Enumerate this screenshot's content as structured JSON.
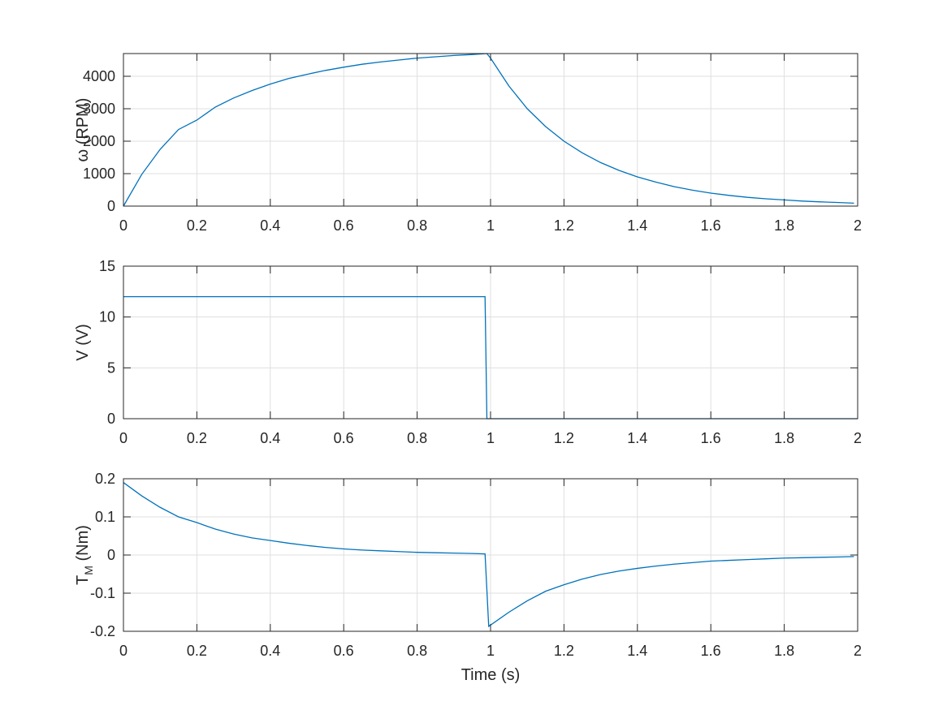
{
  "colors": {
    "series": "#0072bd",
    "axis": "#262626",
    "grid": "#dfdfdf"
  },
  "chart_data": [
    {
      "type": "line",
      "key": "omega",
      "ylabel": "ω (RPM)",
      "xlim": [
        0,
        2
      ],
      "ylim": [
        0,
        4700
      ],
      "xticks": [
        0,
        0.2,
        0.4,
        0.6,
        0.8,
        1,
        1.2,
        1.4,
        1.6,
        1.8,
        2
      ],
      "yticks": [
        0,
        1000,
        2000,
        3000,
        4000
      ],
      "grid": true,
      "series": [
        {
          "x": [
            0,
            0.05,
            0.1,
            0.15,
            0.2,
            0.25,
            0.3,
            0.35,
            0.4,
            0.45,
            0.5,
            0.55,
            0.6,
            0.65,
            0.7,
            0.75,
            0.8,
            0.85,
            0.9,
            0.95,
            0.99,
            1.0,
            1.05,
            1.1,
            1.15,
            1.2,
            1.25,
            1.3,
            1.35,
            1.4,
            1.45,
            1.5,
            1.55,
            1.6,
            1.65,
            1.7,
            1.75,
            1.8,
            1.85,
            1.9,
            1.95,
            1.99
          ],
          "y": [
            0,
            980,
            1750,
            2360,
            2650,
            3050,
            3330,
            3560,
            3760,
            3930,
            4060,
            4180,
            4280,
            4370,
            4440,
            4500,
            4560,
            4600,
            4640,
            4670,
            4700,
            4560,
            3700,
            3000,
            2450,
            2000,
            1640,
            1340,
            1100,
            900,
            740,
            600,
            490,
            400,
            330,
            270,
            225,
            190,
            155,
            130,
            110,
            90
          ]
        }
      ]
    },
    {
      "type": "line",
      "key": "voltage",
      "ylabel": "V (V)",
      "xlim": [
        0,
        2
      ],
      "ylim": [
        0,
        15
      ],
      "xticks": [
        0,
        0.2,
        0.4,
        0.6,
        0.8,
        1,
        1.2,
        1.4,
        1.6,
        1.8,
        2
      ],
      "yticks": [
        0,
        5,
        10,
        15
      ],
      "grid": true,
      "series": [
        {
          "x": [
            0,
            0.985,
            0.99,
            2
          ],
          "y": [
            12,
            12,
            0,
            0
          ]
        }
      ]
    },
    {
      "type": "line",
      "key": "torque",
      "ylabel": "T",
      "ylabel_sub": "M",
      "ylabel_unit": " (Nm)",
      "xlabel": "Time (s)",
      "xlim": [
        0,
        2
      ],
      "ylim": [
        -0.2,
        0.2
      ],
      "xticks": [
        0,
        0.2,
        0.4,
        0.6,
        0.8,
        1,
        1.2,
        1.4,
        1.6,
        1.8,
        2
      ],
      "yticks": [
        -0.2,
        -0.1,
        0,
        0.1,
        0.2
      ],
      "grid": true,
      "series": [
        {
          "x": [
            0,
            0.05,
            0.1,
            0.15,
            0.2,
            0.25,
            0.3,
            0.35,
            0.4,
            0.45,
            0.5,
            0.55,
            0.6,
            0.65,
            0.7,
            0.75,
            0.8,
            0.85,
            0.9,
            0.95,
            0.985,
            0.995,
            1.05,
            1.1,
            1.15,
            1.2,
            1.25,
            1.3,
            1.35,
            1.4,
            1.45,
            1.5,
            1.55,
            1.6,
            1.65,
            1.7,
            1.75,
            1.8,
            1.85,
            1.9,
            1.95,
            1.99
          ],
          "y": [
            0.19,
            0.155,
            0.125,
            0.1,
            0.085,
            0.068,
            0.055,
            0.045,
            0.038,
            0.031,
            0.025,
            0.02,
            0.016,
            0.013,
            0.011,
            0.009,
            0.007,
            0.006,
            0.005,
            0.004,
            0.003,
            -0.187,
            -0.15,
            -0.12,
            -0.095,
            -0.078,
            -0.063,
            -0.051,
            -0.042,
            -0.035,
            -0.029,
            -0.024,
            -0.02,
            -0.016,
            -0.014,
            -0.012,
            -0.01,
            -0.008,
            -0.007,
            -0.006,
            -0.005,
            -0.004
          ]
        }
      ]
    }
  ]
}
